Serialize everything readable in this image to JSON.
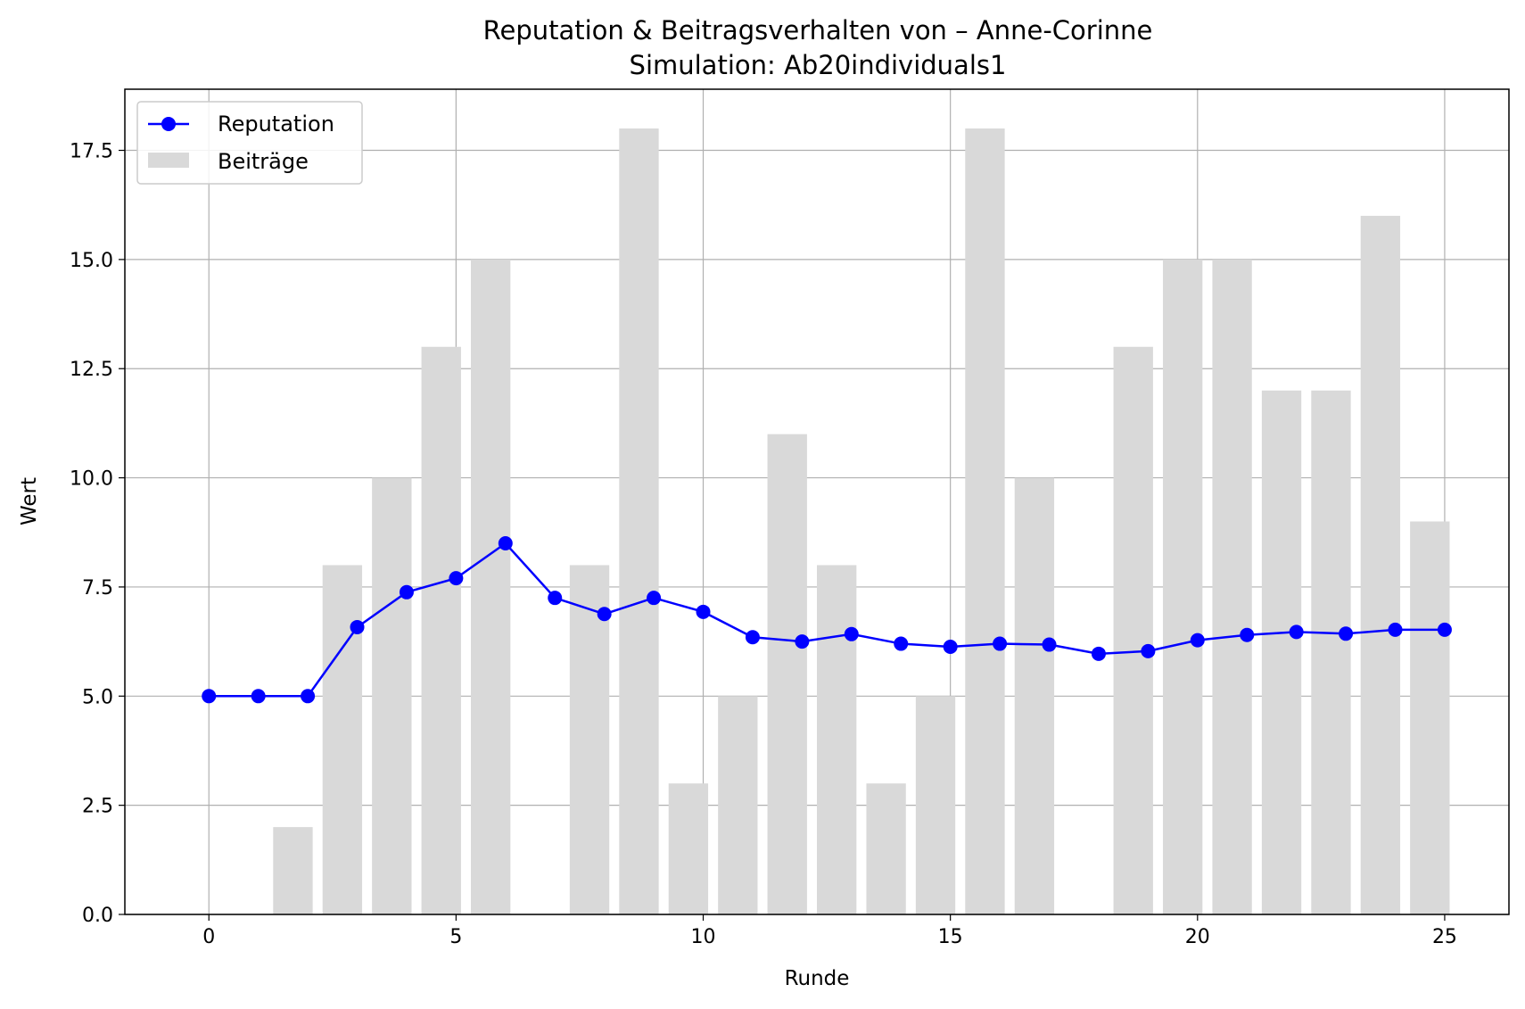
{
  "chart_data": {
    "type": "bar+line",
    "title": "Reputation & Beitragsverhalten von – Anne-Corinne",
    "subtitle": "Simulation: Ab20individuals1",
    "xlabel": "Runde",
    "ylabel": "Wert",
    "xlim": [
      -1.7,
      26.3
    ],
    "ylim": [
      0,
      18.9
    ],
    "xticks": [
      0,
      5,
      10,
      15,
      20,
      25
    ],
    "xtick_labels": [
      "0",
      "5",
      "10",
      "15",
      "20",
      "25"
    ],
    "yticks": [
      0,
      2.5,
      5,
      7.5,
      10,
      12.5,
      15,
      17.5
    ],
    "ytick_labels": [
      "0.0",
      "2.5",
      "5.0",
      "7.5",
      "10.0",
      "12.5",
      "15.0",
      "17.5"
    ],
    "grid": true,
    "legend_position": "top-left",
    "colors": {
      "reputation": "#0000ff",
      "beitraege": "#d9d9d9",
      "grid": "#b0b0b0"
    },
    "series": [
      {
        "name": "Reputation",
        "type": "line",
        "marker": "circle",
        "x": [
          0,
          1,
          2,
          3,
          4,
          5,
          6,
          7,
          8,
          9,
          10,
          11,
          12,
          13,
          14,
          15,
          16,
          17,
          18,
          19,
          20,
          21,
          22,
          23,
          24,
          25
        ],
        "values": [
          5.0,
          5.0,
          5.0,
          6.58,
          7.38,
          7.7,
          8.5,
          7.25,
          6.88,
          7.25,
          6.93,
          6.35,
          6.25,
          6.42,
          6.2,
          6.13,
          6.2,
          6.18,
          5.97,
          6.03,
          6.28,
          6.4,
          6.47,
          6.43,
          6.52,
          6.52
        ]
      },
      {
        "name": "Beiträge",
        "type": "bar",
        "x": [
          0,
          1,
          2,
          3,
          4,
          5,
          6,
          7,
          8,
          9,
          10,
          11,
          12,
          13,
          14,
          15,
          16,
          17,
          18,
          19,
          20,
          21,
          22,
          23,
          24
        ],
        "values": [
          0,
          2,
          8,
          10,
          13,
          15,
          0,
          8,
          18,
          3,
          5,
          11,
          8,
          3,
          5,
          18,
          10,
          0,
          13,
          15,
          15,
          12,
          12,
          16,
          9
        ]
      }
    ]
  }
}
